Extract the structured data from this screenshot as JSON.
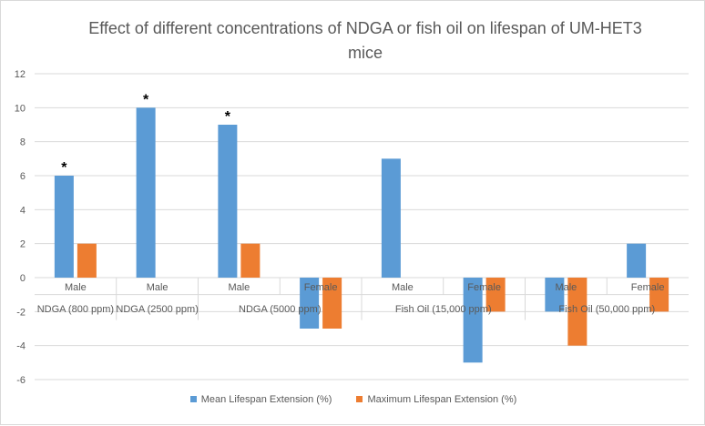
{
  "chart_data": {
    "type": "bar",
    "title": "Effect of different concentrations of NDGA or fish oil on lifespan of UM-HET3 mice",
    "xlabel": "",
    "ylabel": "",
    "ylim": [
      -6,
      12
    ],
    "yticks": [
      -6,
      -4,
      -2,
      0,
      2,
      4,
      6,
      8,
      10,
      12
    ],
    "categories": [
      "Male",
      "Male",
      "Male",
      "Female",
      "Male",
      "Female",
      "Male",
      "Female"
    ],
    "groups": [
      {
        "label": "NDGA (800 ppm)",
        "span": 1
      },
      {
        "label": "NDGA (2500 ppm)",
        "span": 1
      },
      {
        "label": "NDGA (5000 ppm)",
        "span": 2
      },
      {
        "label": "Fish Oil (15,000 ppm)",
        "span": 2
      },
      {
        "label": "Fish Oil (50,000 ppm)",
        "span": 2
      }
    ],
    "series": [
      {
        "name": "Mean Lifespan Extension (%)",
        "color": "#5b9bd5",
        "values": [
          6,
          10,
          9,
          -3,
          7,
          -5,
          -2,
          2
        ]
      },
      {
        "name": "Maximum Lifespan Extension (%)",
        "color": "#ed7d31",
        "values": [
          2,
          0,
          2,
          -3,
          0,
          -2,
          -4,
          -2
        ]
      }
    ],
    "annotations": [
      {
        "category_index": 0,
        "series_index": 0,
        "text": "*"
      },
      {
        "category_index": 1,
        "series_index": 0,
        "text": "*"
      },
      {
        "category_index": 2,
        "series_index": 0,
        "text": "*"
      }
    ],
    "grid": true,
    "legend_position": "bottom"
  }
}
